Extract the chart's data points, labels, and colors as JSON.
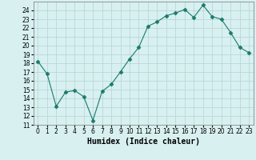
{
  "x": [
    0,
    1,
    2,
    3,
    4,
    5,
    6,
    7,
    8,
    9,
    10,
    11,
    12,
    13,
    14,
    15,
    16,
    17,
    18,
    19,
    20,
    21,
    22,
    23
  ],
  "y": [
    18.2,
    16.8,
    13.1,
    14.7,
    14.9,
    14.2,
    11.5,
    14.8,
    15.6,
    17.0,
    18.5,
    19.8,
    22.2,
    22.7,
    23.4,
    23.7,
    24.1,
    23.2,
    24.6,
    23.3,
    23.0,
    21.5,
    19.8,
    19.2
  ],
  "line_color": "#1a7a6a",
  "marker": "D",
  "marker_size": 2.5,
  "bg_color": "#d8f0f0",
  "grid_color": "#b8d8d8",
  "xlabel": "Humidex (Indice chaleur)",
  "ylim": [
    11,
    25
  ],
  "yticks": [
    11,
    12,
    13,
    14,
    15,
    16,
    17,
    18,
    19,
    20,
    21,
    22,
    23,
    24
  ],
  "xtick_labels": [
    "0",
    "1",
    "2",
    "3",
    "4",
    "5",
    "6",
    "7",
    "8",
    "9",
    "10",
    "11",
    "12",
    "13",
    "14",
    "15",
    "16",
    "17",
    "18",
    "19",
    "20",
    "21",
    "22",
    "23"
  ],
  "xlabel_fontsize": 7,
  "tick_fontsize": 5.5
}
